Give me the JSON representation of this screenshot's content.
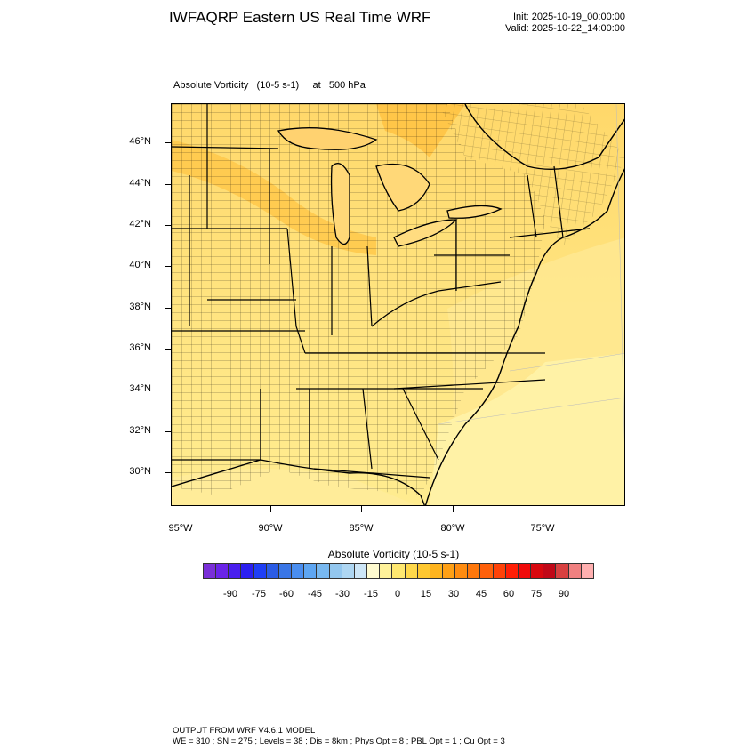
{
  "header": {
    "title": "IWFAQRP Eastern US Real Time WRF",
    "init": "Init: 2025-10-19_00:00:00",
    "valid": "Valid: 2025-10-22_14:00:00"
  },
  "field_label": "Absolute Vorticity   (10-5 s-1)     at   500 hPa",
  "map": {
    "lat_labels": [
      "46°N",
      "44°N",
      "42°N",
      "40°N",
      "38°N",
      "36°N",
      "34°N",
      "32°N",
      "30°N"
    ],
    "lon_labels": [
      "95°W",
      "90°W",
      "85°W",
      "80°W",
      "75°W"
    ]
  },
  "colorbar": {
    "title": "Absolute Vorticity  (10-5 s-1)",
    "labels": [
      "-90",
      "-75",
      "-60",
      "-45",
      "-30",
      "-15",
      "0",
      "15",
      "30",
      "45",
      "60",
      "75",
      "90"
    ],
    "colors": [
      "#7a2fd8",
      "#6a24e8",
      "#4a1fef",
      "#2b1ff0",
      "#1f3ff5",
      "#2b5ce6",
      "#3a76e6",
      "#4a8ef0",
      "#5ea6f3",
      "#78b8f0",
      "#93c7ef",
      "#aed6f2",
      "#cde6f7",
      "#fffbd0",
      "#fff29a",
      "#ffe870",
      "#ffd84a",
      "#ffc830",
      "#ffb41e",
      "#ffa015",
      "#ff8c10",
      "#ff780c",
      "#ff600a",
      "#ff4208",
      "#ff1f06",
      "#f00a0a",
      "#d8080f",
      "#c00818",
      "#d84040",
      "#f08080",
      "#ffb0b0"
    ]
  },
  "footer": {
    "line1": "OUTPUT FROM WRF V4.6.1 MODEL",
    "line2": "WE = 310 ; SN = 275 ; Levels = 38 ; Dis = 8km ; Phys Opt = 8 ; PBL Opt = 1 ; Cu Opt = 3"
  }
}
